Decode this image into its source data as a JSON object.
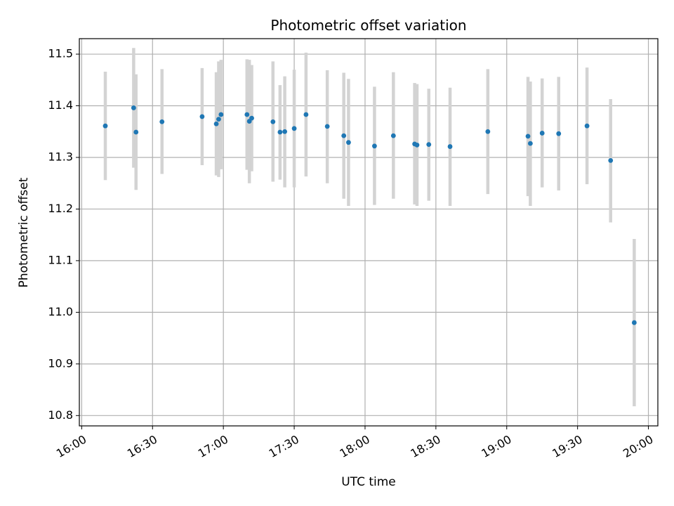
{
  "chart_data": {
    "type": "scatter",
    "title": "Photometric offset variation",
    "xlabel": "UTC time",
    "ylabel": "Photometric offset",
    "grid": true,
    "xlim": [
      "15:59",
      "20:04"
    ],
    "ylim": [
      10.78,
      11.53
    ],
    "x_ticks": [
      "16:00",
      "16:30",
      "17:00",
      "17:30",
      "18:00",
      "18:30",
      "19:00",
      "19:30",
      "20:00"
    ],
    "y_ticks": [
      "10.8",
      "10.9",
      "11.0",
      "11.1",
      "11.2",
      "11.3",
      "11.4",
      "11.5"
    ],
    "marker_color": "#1f77b4",
    "errorbar_color": "#d3d3d3",
    "series": [
      {
        "points": [
          {
            "t": "16:10",
            "y": 11.361,
            "lo": 11.256,
            "hi": 11.466
          },
          {
            "t": "16:22",
            "y": 11.396,
            "lo": 11.28,
            "hi": 11.512
          },
          {
            "t": "16:23",
            "y": 11.349,
            "lo": 11.237,
            "hi": 11.461
          },
          {
            "t": "16:34",
            "y": 11.369,
            "lo": 11.268,
            "hi": 11.471
          },
          {
            "t": "16:51",
            "y": 11.379,
            "lo": 11.285,
            "hi": 11.473
          },
          {
            "t": "16:57",
            "y": 11.365,
            "lo": 11.265,
            "hi": 11.465
          },
          {
            "t": "16:58",
            "y": 11.374,
            "lo": 11.262,
            "hi": 11.486
          },
          {
            "t": "16:59",
            "y": 11.383,
            "lo": 11.277,
            "hi": 11.489
          },
          {
            "t": "17:10",
            "y": 11.383,
            "lo": 11.276,
            "hi": 11.49
          },
          {
            "t": "17:11",
            "y": 11.37,
            "lo": 11.25,
            "hi": 11.489
          },
          {
            "t": "17:12",
            "y": 11.376,
            "lo": 11.273,
            "hi": 11.479
          },
          {
            "t": "17:21",
            "y": 11.369,
            "lo": 11.253,
            "hi": 11.486
          },
          {
            "t": "17:24",
            "y": 11.349,
            "lo": 11.257,
            "hi": 11.44
          },
          {
            "t": "17:26",
            "y": 11.35,
            "lo": 11.242,
            "hi": 11.457
          },
          {
            "t": "17:30",
            "y": 11.356,
            "lo": 11.242,
            "hi": 11.47
          },
          {
            "t": "17:35",
            "y": 11.383,
            "lo": 11.263,
            "hi": 11.503
          },
          {
            "t": "17:44",
            "y": 11.36,
            "lo": 11.25,
            "hi": 11.469
          },
          {
            "t": "17:51",
            "y": 11.342,
            "lo": 11.22,
            "hi": 11.464
          },
          {
            "t": "17:53",
            "y": 11.329,
            "lo": 11.206,
            "hi": 11.452
          },
          {
            "t": "18:04",
            "y": 11.322,
            "lo": 11.208,
            "hi": 11.437
          },
          {
            "t": "18:12",
            "y": 11.342,
            "lo": 11.22,
            "hi": 11.465
          },
          {
            "t": "18:21",
            "y": 11.326,
            "lo": 11.209,
            "hi": 11.444
          },
          {
            "t": "18:22",
            "y": 11.324,
            "lo": 11.206,
            "hi": 11.442
          },
          {
            "t": "18:27",
            "y": 11.325,
            "lo": 11.216,
            "hi": 11.433
          },
          {
            "t": "18:36",
            "y": 11.321,
            "lo": 11.206,
            "hi": 11.435
          },
          {
            "t": "18:52",
            "y": 11.35,
            "lo": 11.229,
            "hi": 11.471
          },
          {
            "t": "19:09",
            "y": 11.341,
            "lo": 11.225,
            "hi": 11.456
          },
          {
            "t": "19:10",
            "y": 11.327,
            "lo": 11.206,
            "hi": 11.447
          },
          {
            "t": "19:15",
            "y": 11.347,
            "lo": 11.242,
            "hi": 11.453
          },
          {
            "t": "19:22",
            "y": 11.346,
            "lo": 11.236,
            "hi": 11.456
          },
          {
            "t": "19:34",
            "y": 11.361,
            "lo": 11.248,
            "hi": 11.474
          },
          {
            "t": "19:44",
            "y": 11.294,
            "lo": 11.174,
            "hi": 11.413
          },
          {
            "t": "19:54",
            "y": 10.98,
            "lo": 10.818,
            "hi": 11.142
          }
        ]
      }
    ]
  }
}
